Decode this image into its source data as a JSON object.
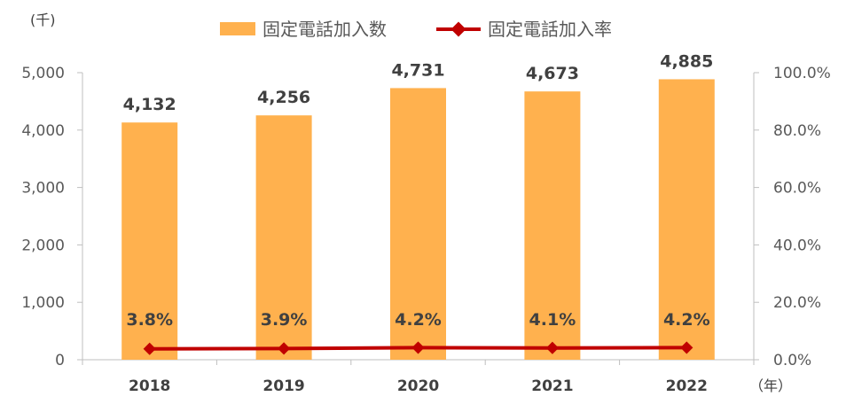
{
  "chart_data": {
    "type": "bar",
    "categories": [
      "2018",
      "2019",
      "2020",
      "2021",
      "2022"
    ],
    "series": [
      {
        "name": "固定電話加入数",
        "type": "bar",
        "axis": "left",
        "color": "#FFB14E",
        "values": [
          4132,
          4256,
          4731,
          4673,
          4885
        ],
        "labels": [
          "4,132",
          "4,256",
          "4,731",
          "4,673",
          "4,885"
        ]
      },
      {
        "name": "固定電話加入率",
        "type": "line",
        "axis": "right",
        "color": "#C00000",
        "values": [
          3.8,
          3.9,
          4.2,
          4.1,
          4.2
        ],
        "labels": [
          "3.8%",
          "3.9%",
          "4.2%",
          "4.1%",
          "4.2%"
        ]
      }
    ],
    "y_left": {
      "unit_label": "(千)",
      "ylim": [
        0,
        5000
      ],
      "tick_values": [
        0,
        1000,
        2000,
        3000,
        4000,
        5000
      ],
      "tick_labels": [
        "0",
        "1,000",
        "2,000",
        "3,000",
        "4,000",
        "5,000"
      ]
    },
    "y_right": {
      "ylim": [
        0,
        100
      ],
      "tick_values": [
        0,
        20,
        40,
        60,
        80,
        100
      ],
      "tick_labels": [
        "0.0%",
        "20.0%",
        "40.0%",
        "60.0%",
        "80.0%",
        "100.0%"
      ]
    },
    "x_unit_label": "（年）",
    "grid": false,
    "legend_position": "top"
  }
}
